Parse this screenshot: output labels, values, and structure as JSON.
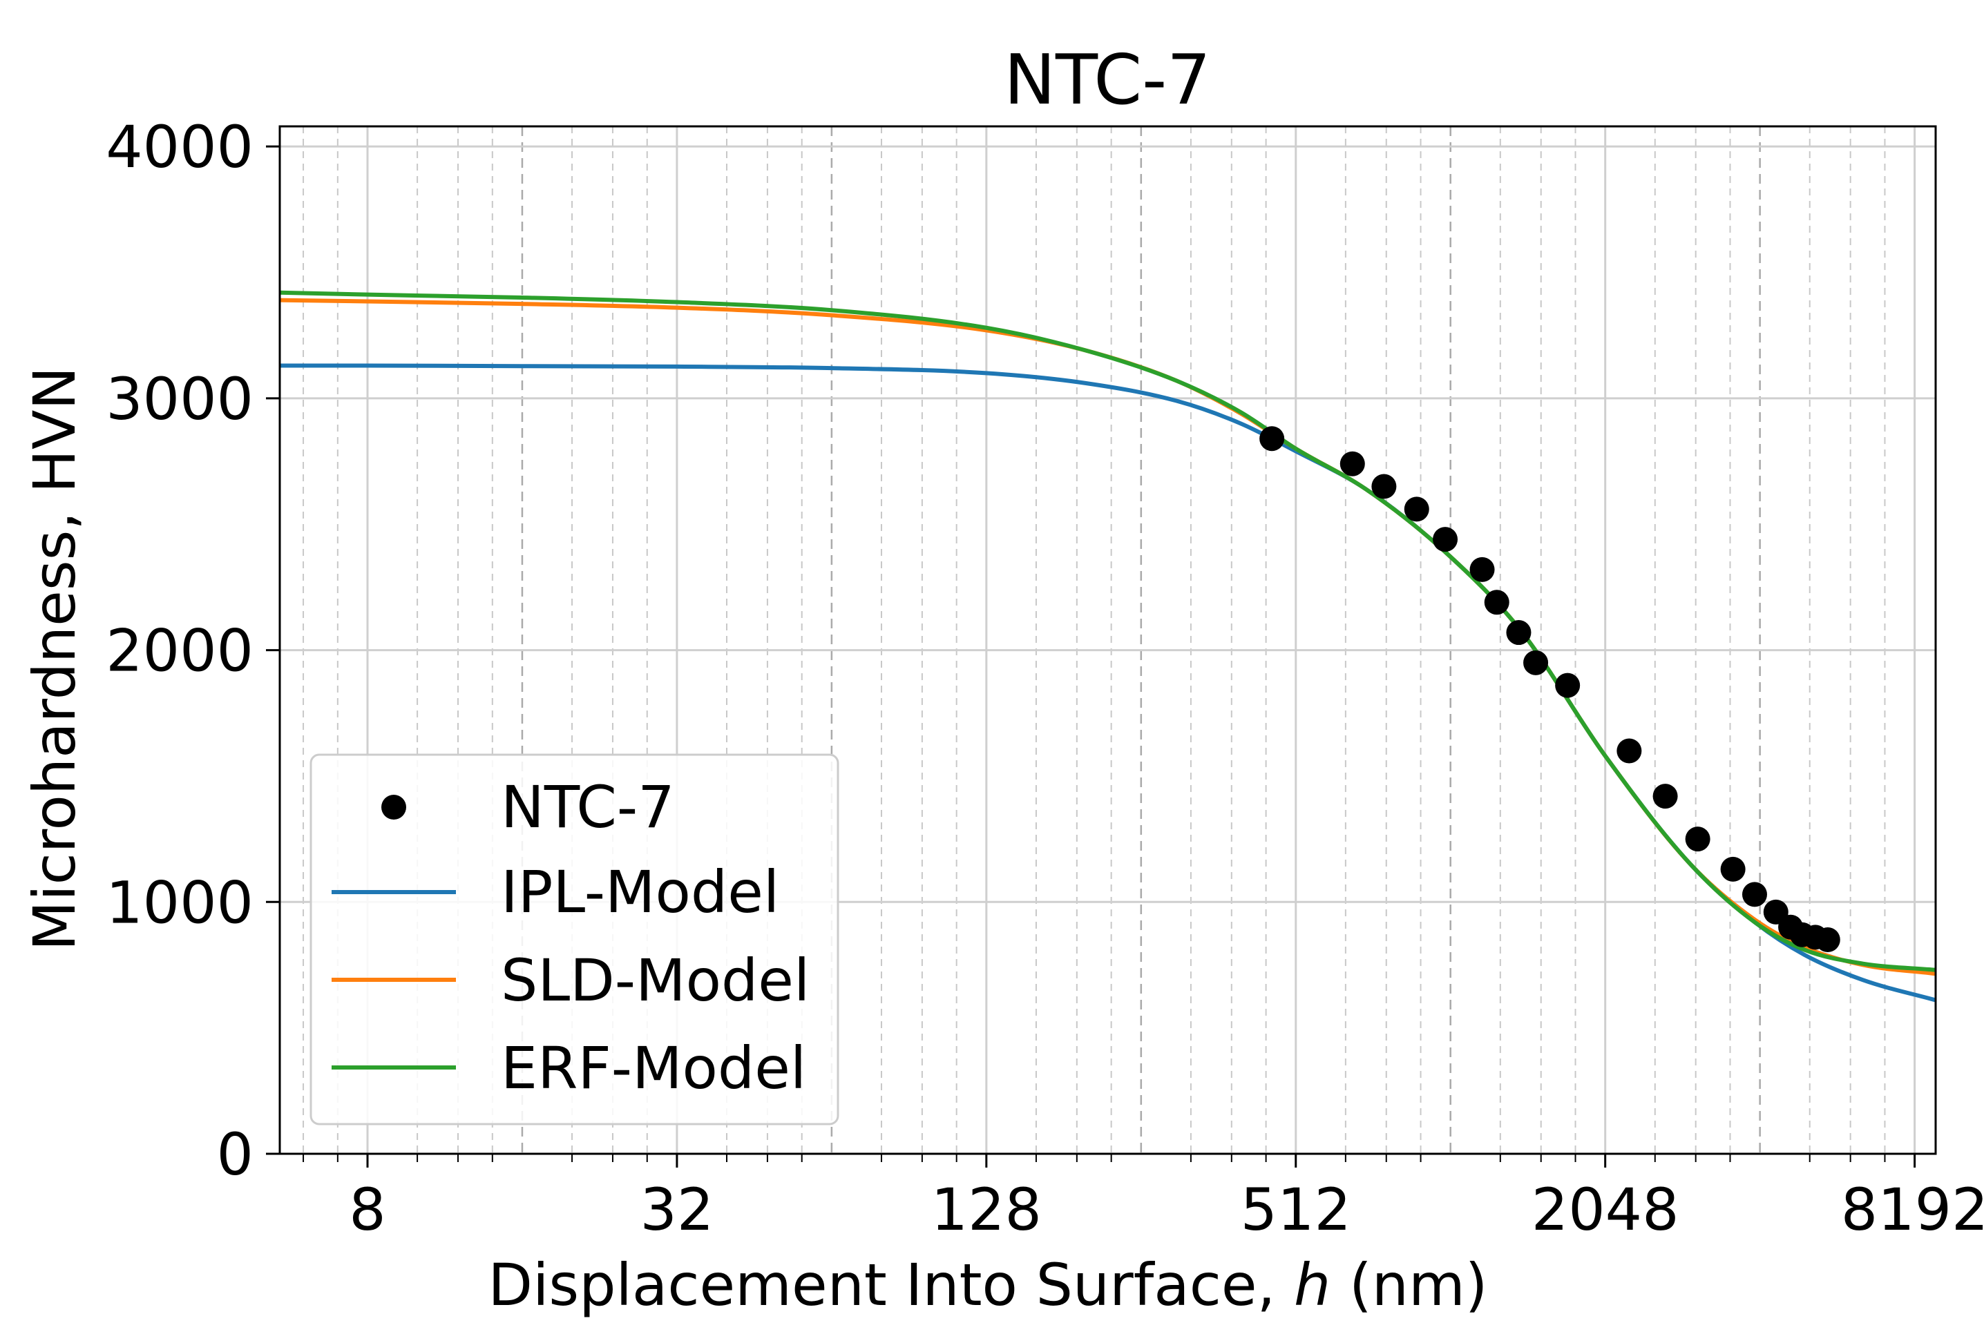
{
  "chart_data": {
    "type": "line",
    "title": "NTC-7",
    "xlabel": {
      "prefix": "Displacement Into Surface, ",
      "variable": "h",
      "suffix": " (nm)"
    },
    "ylabel": "Microhardness, HVN",
    "x_scale": "log2",
    "xlim": [
      5.4,
      9000
    ],
    "ylim": [
      0,
      4080
    ],
    "x_ticks": [
      8,
      32,
      128,
      512,
      2048,
      8192
    ],
    "x_tick_labels": [
      "8",
      "32",
      "128",
      "512",
      "2048",
      "8192"
    ],
    "y_ticks": [
      0,
      1000,
      2000,
      3000,
      4000
    ],
    "y_tick_labels": [
      "0",
      "1000",
      "2000",
      "3000",
      "4000"
    ],
    "grid": true,
    "legend_position": "lower-left",
    "scatter": {
      "name": "NTC-7",
      "color": "#000000",
      "x": [
        460,
        660,
        760,
        880,
        1000,
        1180,
        1260,
        1390,
        1500,
        1730,
        2280,
        2680,
        3100,
        3630,
        4000,
        4400,
        4700,
        4950,
        5250,
        5550
      ],
      "y": [
        2840,
        2740,
        2650,
        2560,
        2440,
        2320,
        2190,
        2070,
        1950,
        1860,
        1600,
        1420,
        1250,
        1130,
        1030,
        960,
        900,
        870,
        860,
        850
      ]
    },
    "series": [
      {
        "name": "IPL-Model",
        "color": "#1f77b4",
        "x": [
          5.4,
          8,
          16,
          32,
          64,
          128,
          200,
          300,
          400,
          512,
          700,
          1000,
          1400,
          2048,
          3000,
          4000,
          5000,
          6500,
          9000
        ],
        "y": [
          3130,
          3130,
          3128,
          3126,
          3120,
          3100,
          3060,
          2990,
          2900,
          2790,
          2640,
          2390,
          2080,
          1580,
          1150,
          920,
          790,
          690,
          610
        ]
      },
      {
        "name": "SLD-Model",
        "color": "#ff7f0e",
        "x": [
          5.4,
          8,
          16,
          32,
          64,
          128,
          200,
          300,
          400,
          512,
          700,
          1000,
          1400,
          2048,
          3000,
          4000,
          5000,
          6500,
          9000
        ],
        "y": [
          3390,
          3385,
          3375,
          3360,
          3330,
          3270,
          3190,
          3070,
          2940,
          2800,
          2640,
          2390,
          2080,
          1580,
          1150,
          930,
          820,
          750,
          715
        ]
      },
      {
        "name": "ERF-Model",
        "color": "#2ca02c",
        "x": [
          5.4,
          8,
          16,
          32,
          64,
          128,
          200,
          300,
          400,
          512,
          700,
          1000,
          1400,
          2048,
          3000,
          4000,
          5000,
          6500,
          9000
        ],
        "y": [
          3420,
          3412,
          3400,
          3382,
          3350,
          3280,
          3190,
          3070,
          2945,
          2800,
          2640,
          2390,
          2080,
          1580,
          1150,
          920,
          810,
          755,
          730
        ]
      }
    ]
  }
}
